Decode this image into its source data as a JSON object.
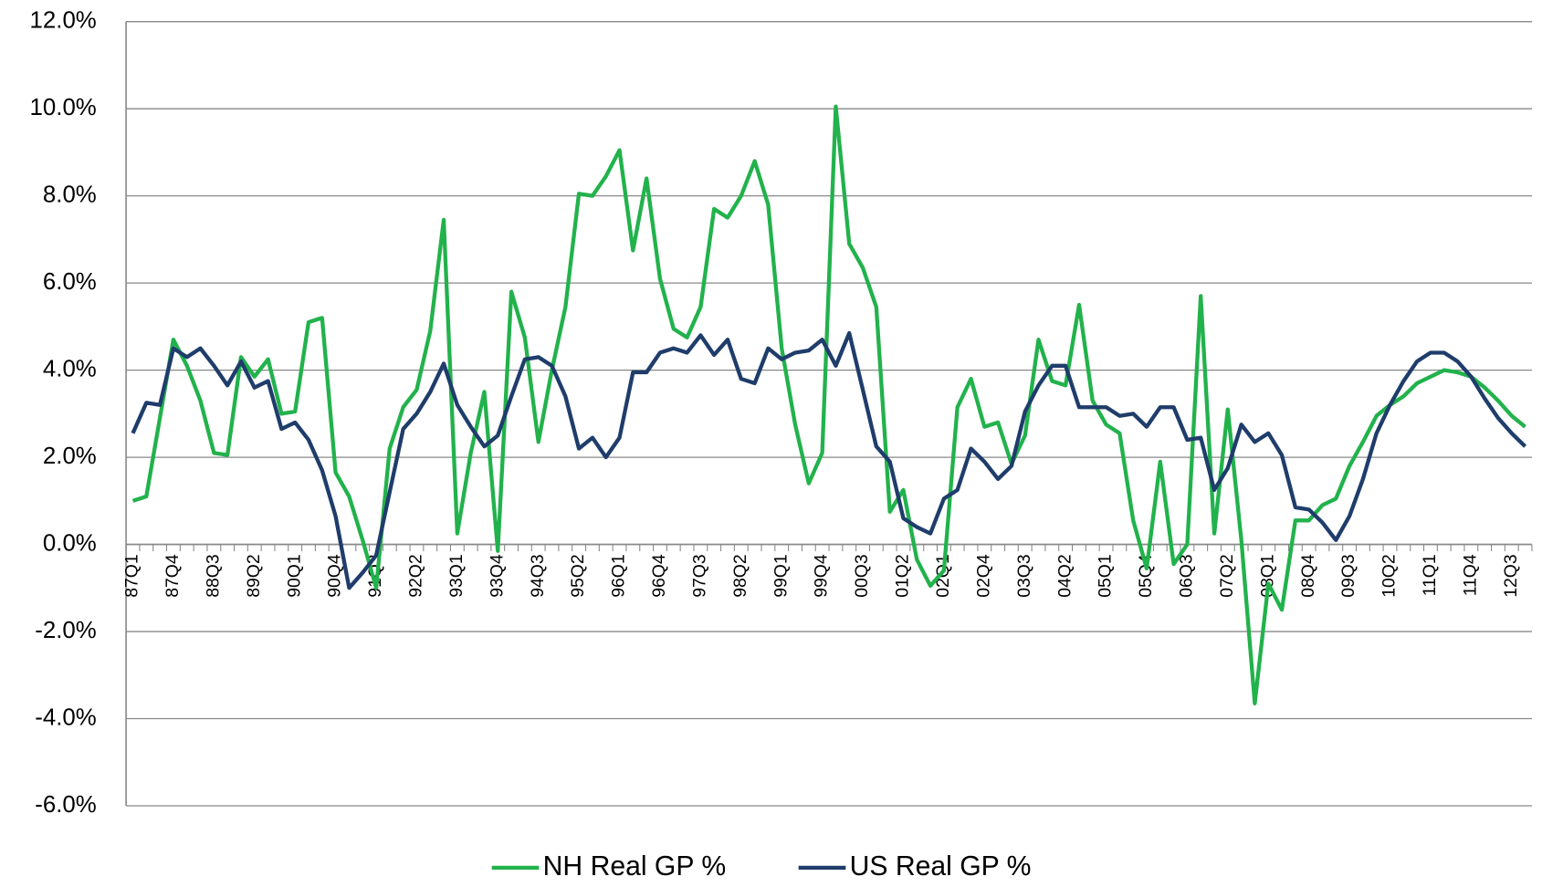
{
  "chart_data": {
    "type": "line",
    "categories": [
      "87Q1",
      null,
      null,
      "87Q4",
      null,
      null,
      "88Q3",
      null,
      null,
      "89Q2",
      null,
      null,
      "90Q1",
      null,
      null,
      "90Q4",
      null,
      null,
      "91Q3",
      null,
      null,
      "92Q2",
      null,
      null,
      "93Q1",
      null,
      null,
      "93Q4",
      null,
      null,
      "94Q3",
      null,
      null,
      "95Q2",
      null,
      null,
      "96Q1",
      null,
      null,
      "96Q4",
      null,
      null,
      "97Q3",
      null,
      null,
      "98Q2",
      null,
      null,
      "99Q1",
      null,
      null,
      "99Q4",
      null,
      null,
      "00Q3",
      null,
      null,
      "01Q2",
      null,
      null,
      "02Q1",
      null,
      null,
      "02Q4",
      null,
      null,
      "03Q3",
      null,
      null,
      "04Q2",
      null,
      null,
      "05Q1",
      null,
      null,
      "05Q4",
      null,
      null,
      "06Q3",
      null,
      null,
      "07Q2",
      null,
      null,
      "08Q1",
      null,
      null,
      "08Q4",
      null,
      null,
      "09Q3",
      null,
      null,
      "10Q2",
      null,
      null,
      "11Q1",
      null,
      null,
      "11Q4",
      null,
      null,
      "12Q3",
      null
    ],
    "series": [
      {
        "name": "NH Real GP %",
        "color": "#22b24c",
        "values": [
          1.0,
          1.1,
          2.9,
          4.7,
          4.1,
          3.3,
          2.1,
          2.05,
          4.3,
          3.85,
          4.25,
          3.0,
          3.05,
          5.1,
          5.2,
          1.65,
          1.1,
          0.1,
          -1.0,
          2.2,
          3.15,
          3.55,
          4.9,
          7.45,
          0.25,
          2.1,
          3.5,
          -0.15,
          5.8,
          4.75,
          2.35,
          4.0,
          5.45,
          8.05,
          8.0,
          8.45,
          9.05,
          6.75,
          8.4,
          6.1,
          4.95,
          4.75,
          5.45,
          7.7,
          7.5,
          8.0,
          8.8,
          7.8,
          4.5,
          2.75,
          1.4,
          2.1,
          10.05,
          6.9,
          6.35,
          5.45,
          0.75,
          1.25,
          -0.35,
          -0.95,
          -0.6,
          3.15,
          3.8,
          2.7,
          2.8,
          1.85,
          2.5,
          4.7,
          3.75,
          3.65,
          5.5,
          3.3,
          2.75,
          2.55,
          0.55,
          -0.55,
          1.9,
          -0.45,
          0.0,
          5.7,
          0.25,
          3.1,
          0.1,
          -3.65,
          -0.9,
          -1.5,
          0.55,
          0.55,
          0.9,
          1.05,
          1.8,
          2.35,
          2.95,
          3.2,
          3.4,
          3.7,
          3.85,
          4.0,
          3.95,
          3.85,
          3.6,
          3.3,
          2.95,
          2.7
        ]
      },
      {
        "name": "US Real GP %",
        "color": "#1f3d6b",
        "values": [
          2.55,
          3.25,
          3.2,
          4.5,
          4.3,
          4.5,
          4.1,
          3.65,
          4.2,
          3.6,
          3.75,
          2.65,
          2.8,
          2.4,
          1.7,
          0.65,
          -1.0,
          -0.65,
          -0.25,
          1.2,
          2.65,
          3.0,
          3.5,
          4.15,
          3.2,
          2.7,
          2.25,
          2.5,
          3.4,
          4.25,
          4.3,
          4.1,
          3.4,
          2.2,
          2.45,
          2.0,
          2.45,
          3.95,
          3.95,
          4.4,
          4.5,
          4.4,
          4.8,
          4.35,
          4.7,
          3.8,
          3.7,
          4.5,
          4.25,
          4.4,
          4.45,
          4.7,
          4.1,
          4.85,
          3.55,
          2.25,
          1.9,
          0.6,
          0.4,
          0.25,
          1.05,
          1.25,
          2.2,
          1.9,
          1.5,
          1.8,
          3.05,
          3.65,
          4.1,
          4.1,
          3.15,
          3.15,
          3.15,
          2.95,
          3.0,
          2.7,
          3.15,
          3.15,
          2.4,
          2.45,
          1.25,
          1.75,
          2.75,
          2.35,
          2.55,
          2.05,
          0.85,
          0.8,
          0.5,
          0.1,
          0.65,
          1.5,
          2.55,
          3.2,
          3.75,
          4.2,
          4.4,
          4.4,
          4.2,
          3.85,
          3.35,
          2.9,
          2.55,
          2.25
        ]
      }
    ],
    "ylim": [
      -6,
      12
    ],
    "yticks": [
      {
        "value": -6,
        "label": "-6.0%"
      },
      {
        "value": -4,
        "label": "-4.0%"
      },
      {
        "value": -2,
        "label": "-2.0%"
      },
      {
        "value": 0,
        "label": "0.0%"
      },
      {
        "value": 2,
        "label": "2.0%"
      },
      {
        "value": 4,
        "label": "4.0%"
      },
      {
        "value": 6,
        "label": "6.0%"
      },
      {
        "value": 8,
        "label": "8.0%"
      },
      {
        "value": 10,
        "label": "10.0%"
      },
      {
        "value": 12,
        "label": "12.0%"
      }
    ],
    "grid": true,
    "legend": "bottom"
  }
}
